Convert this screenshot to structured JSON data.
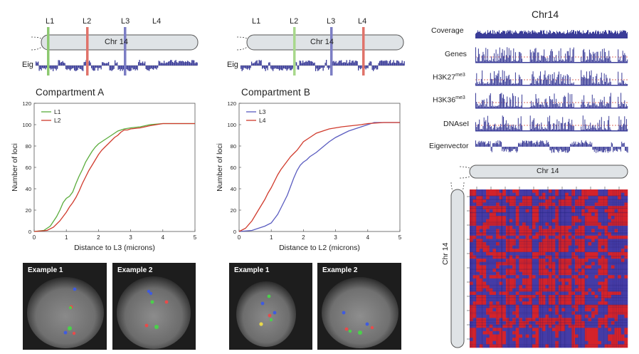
{
  "panelA": {
    "loci": [
      "L1",
      "L2",
      "L3",
      "L4"
    ],
    "loci_colors": {
      "L1": "#8cc870",
      "L2": "#e0736a",
      "L3": "#7c7ec4",
      "L4": null
    },
    "chrom_label": "Chr 14",
    "eig_label": "Eig",
    "title": "Compartment A"
  },
  "panelB": {
    "loci": [
      "L1",
      "L2",
      "L3",
      "L4"
    ],
    "loci_colors": {
      "L1": null,
      "L2": "#a8d88c",
      "L3": "#7c7ec4",
      "L4": "#e0736a"
    },
    "chrom_label": "Chr 14",
    "eig_label": "Eig",
    "title": "Compartment B"
  },
  "chart_data": [
    {
      "type": "line",
      "xlabel": "Distance to L3 (microns)",
      "ylabel": "Number of loci",
      "xlim": [
        0,
        5
      ],
      "ylim": [
        0,
        120
      ],
      "xticks": [
        0,
        1,
        2,
        3,
        4,
        5
      ],
      "yticks": [
        0,
        20,
        40,
        60,
        80,
        100,
        120
      ],
      "legend": "top-left",
      "series": [
        {
          "name": "L1",
          "color": "#5aac3c",
          "x": [
            0,
            0.3,
            0.5,
            0.7,
            0.8,
            0.9,
            1.0,
            1.1,
            1.2,
            1.3,
            1.4,
            1.5,
            1.6,
            1.7,
            1.8,
            1.9,
            2.0,
            2.1,
            2.2,
            2.3,
            2.4,
            2.5,
            2.6,
            2.7,
            2.8,
            3.0,
            3.3,
            3.6,
            4.0,
            4.2,
            5.0
          ],
          "y": [
            0,
            1,
            5,
            14,
            20,
            27,
            31,
            33,
            37,
            45,
            52,
            58,
            65,
            70,
            75,
            79,
            82,
            84,
            86,
            88,
            90,
            92,
            94,
            95,
            96,
            97,
            98,
            100,
            101,
            101,
            101
          ]
        },
        {
          "name": "L2",
          "color": "#d03a2c",
          "x": [
            0,
            0.4,
            0.6,
            0.8,
            0.9,
            1.0,
            1.1,
            1.2,
            1.3,
            1.4,
            1.5,
            1.6,
            1.7,
            1.8,
            1.9,
            2.0,
            2.1,
            2.2,
            2.3,
            2.4,
            2.5,
            2.6,
            2.7,
            2.8,
            2.9,
            3.0,
            3.3,
            3.6,
            4.0,
            4.2,
            5.0
          ],
          "y": [
            0,
            1,
            4,
            10,
            14,
            18,
            23,
            27,
            32,
            38,
            45,
            51,
            57,
            62,
            67,
            72,
            76,
            79,
            82,
            85,
            88,
            90,
            93,
            95,
            95,
            96,
            97,
            99,
            101,
            101,
            101
          ]
        }
      ]
    },
    {
      "type": "line",
      "xlabel": "Distance to L2 (microns)",
      "ylabel": "Number of loci",
      "xlim": [
        0,
        5
      ],
      "ylim": [
        0,
        120
      ],
      "xticks": [
        0,
        1,
        2,
        3,
        4,
        5
      ],
      "yticks": [
        0,
        20,
        40,
        60,
        80,
        100,
        120
      ],
      "legend": "top-left",
      "series": [
        {
          "name": "L3",
          "color": "#5a5cc0",
          "x": [
            0,
            0.4,
            0.6,
            0.8,
            1.0,
            1.1,
            1.2,
            1.3,
            1.4,
            1.5,
            1.6,
            1.7,
            1.8,
            1.9,
            2.0,
            2.1,
            2.2,
            2.4,
            2.6,
            2.8,
            3.0,
            3.2,
            3.4,
            3.6,
            3.8,
            4.0,
            4.2,
            4.5,
            5.0
          ],
          "y": [
            0,
            1,
            3,
            5,
            8,
            12,
            16,
            22,
            28,
            34,
            42,
            50,
            57,
            62,
            65,
            67,
            70,
            74,
            79,
            84,
            88,
            91,
            94,
            96,
            98,
            100,
            102,
            102,
            102
          ]
        },
        {
          "name": "L4",
          "color": "#d03a2c",
          "x": [
            0,
            0.2,
            0.4,
            0.6,
            0.8,
            0.9,
            1.0,
            1.1,
            1.2,
            1.3,
            1.4,
            1.5,
            1.6,
            1.7,
            1.8,
            1.9,
            2.0,
            2.2,
            2.4,
            2.6,
            2.8,
            3.0,
            3.2,
            3.5,
            3.8,
            4.0,
            4.5,
            5.0
          ],
          "y": [
            0,
            3,
            10,
            20,
            30,
            36,
            41,
            47,
            53,
            58,
            62,
            66,
            70,
            73,
            76,
            80,
            84,
            88,
            92,
            94,
            96,
            97,
            98,
            99,
            100,
            101,
            102,
            102
          ]
        }
      ]
    }
  ],
  "micrographs": [
    {
      "label": "Example 1"
    },
    {
      "label": "Example 2"
    },
    {
      "label": "Example 1"
    },
    {
      "label": "Example 2"
    }
  ],
  "right": {
    "title": "Chr14",
    "tracks": [
      "Coverage",
      "Genes",
      "H3K27",
      "H3K36",
      "DNAseI",
      "Eigenvector"
    ],
    "track_sup": [
      "",
      "",
      "me3",
      "me3",
      "",
      ""
    ],
    "chrom_label": "Chr 14",
    "chrom_label_vertical": "Chr 14",
    "colors": {
      "track": "#3a3c98",
      "dash": "#d03a2c",
      "heat_red": "#d4242a",
      "heat_blue": "#3a3eb0"
    }
  }
}
